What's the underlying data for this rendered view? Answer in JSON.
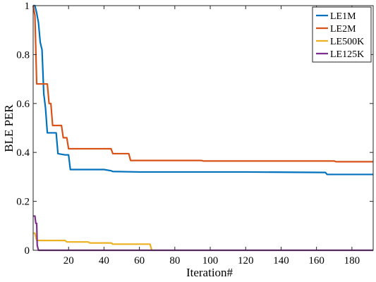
{
  "chart_data": {
    "type": "line",
    "title": "",
    "xlabel": "Iteration#",
    "ylabel": "BLE PER",
    "xlim": [
      0,
      192
    ],
    "ylim": [
      0,
      1
    ],
    "xticks": [
      20,
      40,
      60,
      80,
      100,
      120,
      140,
      160,
      180
    ],
    "yticks": [
      0,
      0.2,
      0.4,
      0.6,
      0.8,
      1
    ],
    "xtick_labels": [
      "20",
      "40",
      "60",
      "80",
      "100",
      "120",
      "140",
      "160",
      "180"
    ],
    "ytick_labels": [
      "0",
      "0.2",
      "0.4",
      "0.6",
      "0.8",
      "1"
    ],
    "grid": false,
    "legend_position": "top-right",
    "series": [
      {
        "name": "LE1M",
        "color": "#0072BD",
        "points": [
          [
            0,
            1
          ],
          [
            1,
            1
          ],
          [
            2,
            0.97
          ],
          [
            3,
            0.93
          ],
          [
            4,
            0.85
          ],
          [
            5,
            0.82
          ],
          [
            6,
            0.64
          ],
          [
            7,
            0.58
          ],
          [
            8,
            0.48
          ],
          [
            13,
            0.48
          ],
          [
            14,
            0.395
          ],
          [
            18,
            0.39
          ],
          [
            20,
            0.39
          ],
          [
            21,
            0.33
          ],
          [
            40,
            0.33
          ],
          [
            44,
            0.325
          ],
          [
            45,
            0.322
          ],
          [
            60,
            0.32
          ],
          [
            120,
            0.32
          ],
          [
            165,
            0.318
          ],
          [
            166,
            0.31
          ],
          [
            192,
            0.31
          ]
        ]
      },
      {
        "name": "LE2M",
        "color": "#D95319",
        "points": [
          [
            0,
            1
          ],
          [
            1,
            0.96
          ],
          [
            2,
            0.68
          ],
          [
            8,
            0.68
          ],
          [
            9,
            0.6
          ],
          [
            10,
            0.6
          ],
          [
            11,
            0.51
          ],
          [
            16,
            0.51
          ],
          [
            17,
            0.46
          ],
          [
            19,
            0.46
          ],
          [
            20,
            0.415
          ],
          [
            44,
            0.415
          ],
          [
            45,
            0.395
          ],
          [
            54,
            0.395
          ],
          [
            55,
            0.367
          ],
          [
            95,
            0.367
          ],
          [
            96,
            0.365
          ],
          [
            170,
            0.365
          ],
          [
            171,
            0.362
          ],
          [
            192,
            0.362
          ]
        ]
      },
      {
        "name": "LE500K",
        "color": "#EDB120",
        "points": [
          [
            0,
            0.07
          ],
          [
            1,
            0.07
          ],
          [
            2,
            0.04
          ],
          [
            5,
            0.04
          ],
          [
            18,
            0.04
          ],
          [
            19,
            0.034
          ],
          [
            31,
            0.034
          ],
          [
            32,
            0.03
          ],
          [
            44,
            0.03
          ],
          [
            45,
            0.025
          ],
          [
            66,
            0.025
          ],
          [
            67,
            0
          ]
        ]
      },
      {
        "name": "LE125K",
        "color": "#7E2F8E",
        "points": [
          [
            0,
            0.14
          ],
          [
            1,
            0.14
          ],
          [
            1.5,
            0.11
          ],
          [
            2,
            0.11
          ],
          [
            2.3,
            0.02
          ],
          [
            3,
            0
          ],
          [
            192,
            0
          ]
        ]
      }
    ]
  }
}
